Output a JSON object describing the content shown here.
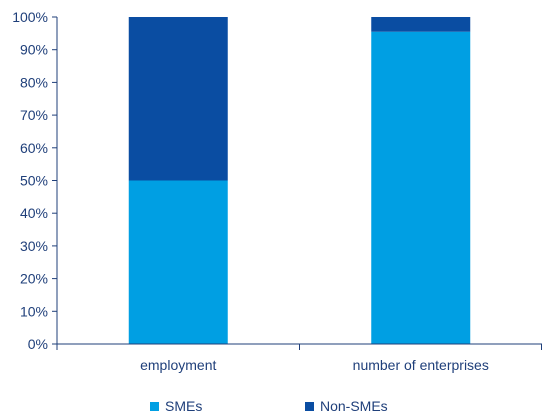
{
  "chart_data": {
    "type": "bar",
    "stacked": true,
    "categories": [
      "employment",
      "number of enterprises"
    ],
    "series": [
      {
        "name": "SMEs",
        "values": [
          50,
          95.5
        ],
        "color": "#009fe3"
      },
      {
        "name": "Non-SMEs",
        "values": [
          50,
          4.5
        ],
        "color": "#0a4da2"
      }
    ],
    "yticks": [
      "0%",
      "10%",
      "20%",
      "30%",
      "40%",
      "50%",
      "60%",
      "70%",
      "80%",
      "90%",
      "100%"
    ],
    "ylim": [
      0,
      100
    ],
    "grid": false,
    "legend_position": "bottom",
    "title": "",
    "xlabel": "",
    "ylabel": ""
  }
}
